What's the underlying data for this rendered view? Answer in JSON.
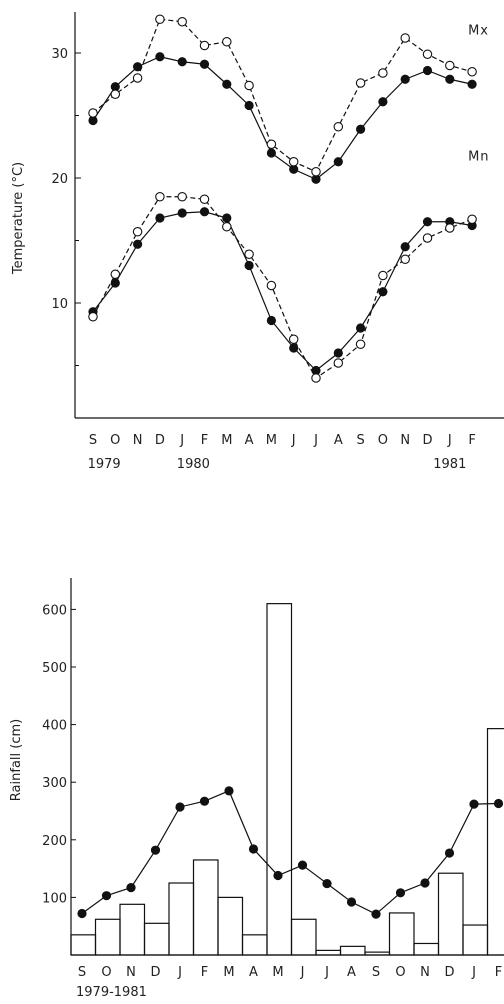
{
  "chart_data": [
    {
      "type": "line",
      "ylabel": "Temperature (°C)",
      "ylim": [
        0,
        34
      ],
      "yticks": [
        "10",
        "20",
        "30"
      ],
      "ytick_values": [
        10,
        20,
        30
      ],
      "categories": [
        "S",
        "O",
        "N",
        "D",
        "J",
        "F",
        "M",
        "A",
        "M",
        "J",
        "J",
        "A",
        "S",
        "O",
        "N",
        "D",
        "J",
        "F"
      ],
      "year_labels": [
        {
          "label": "1979",
          "index": 0.5
        },
        {
          "label": "1980",
          "index": 4.5
        },
        {
          "label": "1981",
          "index": 16.0
        }
      ],
      "annotations": [
        {
          "text": "Mx",
          "index": 17.0,
          "value": 31.5
        },
        {
          "text": "Mn",
          "index": 17.0,
          "value": 21.4
        }
      ],
      "series": [
        {
          "style": "filled",
          "values": [
            24.6,
            27.3,
            28.9,
            29.7,
            29.3,
            29.1,
            27.5,
            25.8,
            22.0,
            20.7,
            19.9,
            21.3,
            23.9,
            26.1,
            27.9,
            28.6,
            27.9,
            27.5
          ]
        },
        {
          "style": "open",
          "values": [
            25.2,
            26.7,
            28.0,
            32.7,
            32.5,
            30.6,
            30.9,
            27.4,
            22.7,
            21.3,
            20.5,
            24.1,
            27.6,
            28.4,
            31.2,
            29.9,
            29.0,
            28.5
          ]
        },
        {
          "style": "filled",
          "values": [
            9.3,
            11.6,
            14.7,
            16.8,
            17.2,
            17.3,
            16.8,
            13.0,
            8.6,
            6.4,
            4.6,
            6.0,
            8.0,
            10.9,
            14.5,
            16.5,
            16.5,
            16.2
          ]
        },
        {
          "style": "open",
          "values": [
            8.9,
            12.3,
            15.7,
            18.5,
            18.5,
            18.3,
            16.1,
            13.9,
            11.4,
            7.1,
            4.0,
            5.2,
            6.7,
            12.2,
            13.5,
            15.2,
            16.0,
            16.7
          ]
        }
      ],
      "colors": {
        "stroke": "#111111",
        "open_fill": "#ffffff"
      }
    },
    {
      "type": "bar+line",
      "ylabel": "Rainfall (cm)",
      "xlabel": "1979-1981",
      "ylim": [
        0,
        620
      ],
      "yticks": [
        "100",
        "200",
        "300",
        "400",
        "500",
        "600"
      ],
      "ytick_values": [
        100,
        200,
        300,
        400,
        500,
        600
      ],
      "categories": [
        "S",
        "O",
        "N",
        "D",
        "J",
        "F",
        "M",
        "A",
        "M",
        "J",
        "J",
        "A",
        "S",
        "O",
        "N",
        "D",
        "J",
        "F"
      ],
      "bars": [
        35,
        62,
        88,
        55,
        125,
        165,
        100,
        35,
        610,
        62,
        8,
        15,
        5,
        73,
        20,
        142,
        52,
        393
      ],
      "line_values": [
        72,
        103,
        117,
        182,
        257,
        267,
        285,
        184,
        138,
        156,
        124,
        92,
        71,
        108,
        125,
        177,
        262,
        263
      ],
      "colors": {
        "stroke": "#111111"
      }
    }
  ]
}
